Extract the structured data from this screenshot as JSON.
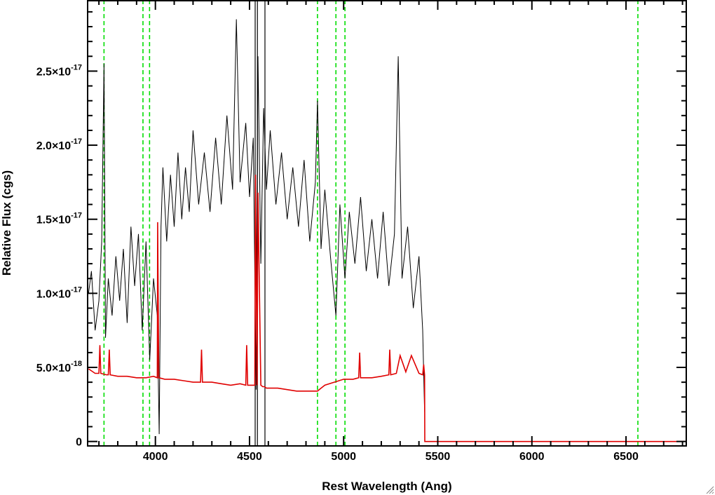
{
  "chart_data": {
    "type": "line",
    "xlabel": "Rest Wavelength (Ang)",
    "ylabel": "Relative Flux (cgs)",
    "xlim": [
      3640,
      6820
    ],
    "ylim": [
      -3e-19,
      2.98e-17
    ],
    "x_ticks": [
      {
        "value": 4000,
        "label": "4000"
      },
      {
        "value": 4500,
        "label": "4500"
      },
      {
        "value": 5000,
        "label": "5000"
      },
      {
        "value": 5500,
        "label": "5500"
      },
      {
        "value": 6000,
        "label": "6000"
      },
      {
        "value": 6500,
        "label": "6500"
      }
    ],
    "y_ticks": [
      {
        "value": 0,
        "mantissa": "0",
        "exponent": ""
      },
      {
        "value": 5e-18,
        "mantissa": "5.0×10",
        "exponent": "-18"
      },
      {
        "value": 1e-17,
        "mantissa": "1.0×10",
        "exponent": "-17"
      },
      {
        "value": 1.5e-17,
        "mantissa": "1.5×10",
        "exponent": "-17"
      },
      {
        "value": 2e-17,
        "mantissa": "2.0×10",
        "exponent": "-17"
      },
      {
        "value": 2.5e-17,
        "mantissa": "2.5×10",
        "exponent": "-17"
      }
    ],
    "grid": false,
    "series": [
      {
        "color": "#000000",
        "x": [
          3645,
          3660,
          3680,
          3700,
          3715,
          3727,
          3735,
          3750,
          3770,
          3790,
          3810,
          3830,
          3850,
          3870,
          3890,
          3910,
          3930,
          3950,
          3970,
          3990,
          4010,
          4020,
          4030,
          4040,
          4060,
          4080,
          4100,
          4120,
          4140,
          4160,
          4180,
          4200,
          4230,
          4260,
          4290,
          4320,
          4350,
          4380,
          4410,
          4430,
          4450,
          4480,
          4500,
          4520,
          4535,
          4545,
          4560,
          4575,
          4590,
          4610,
          4640,
          4670,
          4700,
          4730,
          4760,
          4790,
          4820,
          4850,
          4861,
          4880,
          4900,
          4930,
          4959,
          4980,
          5007,
          5030,
          5060,
          5090,
          5120,
          5150,
          5180,
          5210,
          5240,
          5270,
          5290,
          5310,
          5340,
          5370,
          5400,
          5420,
          5430
        ],
        "y": [
          1e-17,
          1.15e-17,
          7.5e-18,
          9.5e-18,
          1.35e-17,
          2.55e-17,
          7e-18,
          1.1e-17,
          8.5e-18,
          1.25e-17,
          9.5e-18,
          1.3e-17,
          8e-18,
          1.45e-17,
          1.05e-17,
          1.4e-17,
          7.5e-18,
          1.35e-17,
          5.5e-18,
          1.1e-17,
          8.5e-18,
          5e-19,
          1.45e-17,
          1.85e-17,
          1.35e-17,
          1.8e-17,
          1.45e-17,
          1.95e-17,
          1.5e-17,
          1.85e-17,
          1.55e-17,
          2.1e-17,
          1.6e-17,
          1.95e-17,
          1.55e-17,
          2.05e-17,
          1.6e-17,
          2.2e-17,
          1.7e-17,
          2.85e-17,
          1.75e-17,
          2.15e-17,
          1.65e-17,
          2.05e-17,
          3.5e-18,
          2.6e-17,
          1.2e-17,
          2.25e-17,
          1.7e-17,
          2.1e-17,
          1.6e-17,
          1.95e-17,
          1.5e-17,
          1.85e-17,
          1.45e-17,
          1.9e-17,
          1.35e-17,
          1.75e-17,
          2.3e-17,
          1.3e-17,
          1.7e-17,
          1.25e-17,
          8.5e-18,
          1.6e-17,
          1.1e-17,
          1.55e-17,
          1.2e-17,
          1.65e-17,
          1.15e-17,
          1.5e-17,
          1.1e-17,
          1.55e-17,
          1.05e-17,
          1.4e-17,
          2.6e-17,
          1.1e-17,
          1.45e-17,
          9e-18,
          1.25e-17,
          7.5e-18,
          2e-18
        ]
      },
      {
        "color": "#e00000",
        "x": [
          3645,
          3680,
          3700,
          3705,
          3710,
          3740,
          3750,
          3755,
          3760,
          3800,
          3850,
          3900,
          3950,
          3990,
          4010,
          4012,
          4018,
          4020,
          4050,
          4100,
          4150,
          4200,
          4240,
          4245,
          4250,
          4300,
          4350,
          4400,
          4450,
          4480,
          4485,
          4490,
          4500,
          4528,
          4532,
          4540,
          4545,
          4560,
          4570,
          4580,
          4590,
          4650,
          4700,
          4750,
          4800,
          4861,
          4880,
          4900,
          4950,
          5000,
          5050,
          5080,
          5085,
          5090,
          5150,
          5200,
          5240,
          5245,
          5250,
          5280,
          5300,
          5330,
          5360,
          5400,
          5420,
          5425,
          5430,
          5431,
          5500,
          6000,
          6500,
          6820
        ],
        "y": [
          4.9e-18,
          4.6e-18,
          4.6e-18,
          6.5e-18,
          4.6e-18,
          4.5e-18,
          4.5e-18,
          6.2e-18,
          4.5e-18,
          4.4e-18,
          4.4e-18,
          4.3e-18,
          4.3e-18,
          4.4e-18,
          4.3e-18,
          1.48e-17,
          4.3e-18,
          4.3e-18,
          4.2e-18,
          4.2e-18,
          4.1e-18,
          4e-18,
          4e-18,
          6.2e-18,
          4e-18,
          4e-18,
          3.9e-18,
          3.8e-18,
          3.9e-18,
          3.8e-18,
          6.5e-18,
          3.8e-18,
          3.8e-18,
          3.8e-18,
          1.8e-17,
          3.8e-18,
          1.68e-17,
          3.8e-18,
          3.7e-18,
          3.7e-18,
          3.6e-18,
          3.6e-18,
          3.5e-18,
          3.4e-18,
          3.4e-18,
          3.4e-18,
          3.6e-18,
          3.8e-18,
          4e-18,
          4.2e-18,
          4.2e-18,
          4.3e-18,
          6e-18,
          4.3e-18,
          4.3e-18,
          4.4e-18,
          4.5e-18,
          6.2e-18,
          4.5e-18,
          4.6e-18,
          5.8e-18,
          4.7e-18,
          5.8e-18,
          4.6e-18,
          4.5e-18,
          5.2e-18,
          4.5e-18,
          0.0,
          0.0,
          0.0,
          0.0,
          0.0
        ]
      }
    ],
    "vertical_lines": [
      {
        "x": 3727,
        "color": "#00dd00",
        "style": "dashed"
      },
      {
        "x": 3934,
        "color": "#00dd00",
        "style": "dashed"
      },
      {
        "x": 3969,
        "color": "#00dd00",
        "style": "dashed"
      },
      {
        "x": 4861,
        "color": "#00dd00",
        "style": "dashed"
      },
      {
        "x": 4959,
        "color": "#00dd00",
        "style": "dashed"
      },
      {
        "x": 5007,
        "color": "#00dd00",
        "style": "dashed"
      },
      {
        "x": 6563,
        "color": "#00dd00",
        "style": "dashed"
      },
      {
        "x": 4530,
        "color": "#000000",
        "style": "solid"
      },
      {
        "x": 4542,
        "color": "#000000",
        "style": "solid"
      },
      {
        "x": 4582,
        "color": "#000000",
        "style": "solid"
      }
    ]
  }
}
